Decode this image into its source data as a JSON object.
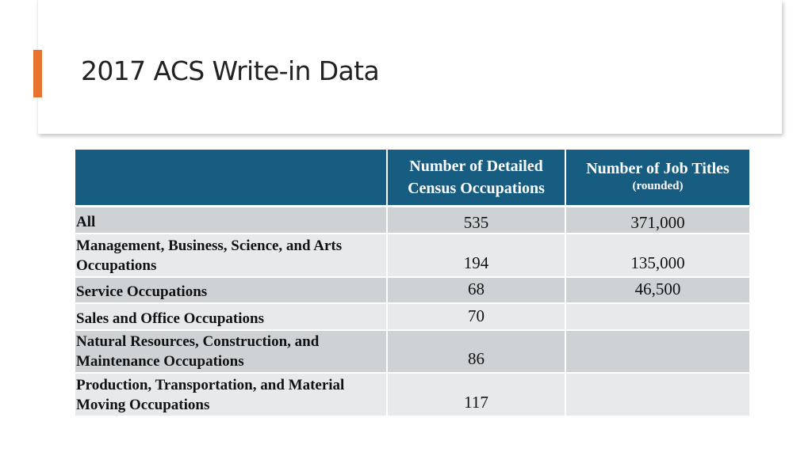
{
  "slide": {
    "title": "2017 ACS Write-in Data"
  },
  "colors": {
    "accent": "#e8712f",
    "header_bg": "#175d81",
    "row_dark": "#cfd2d4",
    "row_light": "#e8e9ea"
  },
  "table": {
    "headers": {
      "category": "",
      "occupations": "Number of Detailed Census Occupations",
      "job_titles": "Number of Job Titles",
      "job_titles_note": "(rounded)"
    },
    "rows": [
      {
        "label": "All",
        "occupations": "535",
        "job_titles": "371,000"
      },
      {
        "label": "Management,  Business, Science, and Arts Occupations",
        "occupations": "194",
        "job_titles": "135,000"
      },
      {
        "label": "Service Occupations",
        "occupations": "68",
        "job_titles": "46,500"
      },
      {
        "label": "Sales and Office Occupations",
        "occupations": "70",
        "job_titles": ""
      },
      {
        "label": "Natural Resources, Construction, and Maintenance Occupations",
        "occupations": "86",
        "job_titles": ""
      },
      {
        "label": "Production, Transportation, and Material Moving Occupations",
        "occupations": "117",
        "job_titles": ""
      }
    ]
  }
}
